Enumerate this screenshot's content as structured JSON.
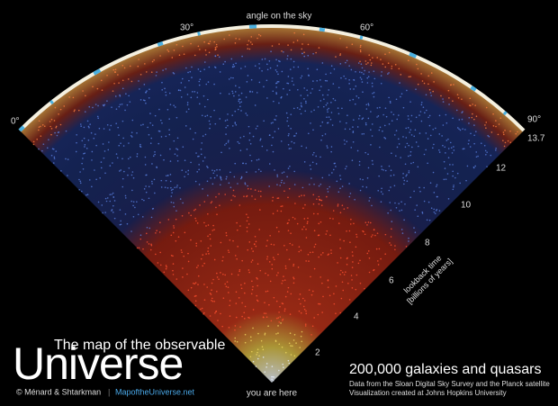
{
  "header": {
    "title_line": "The map of the observable",
    "title_big": "Universe",
    "credit": "© Ménard & Shtarkman",
    "link": "MapoftheUniverse.net"
  },
  "angle_axis": {
    "label": "angle on the sky",
    "ticks": [
      "0°",
      "30°",
      "60°",
      "90°"
    ]
  },
  "lookback_axis": {
    "label_lines": [
      "lookback time",
      "[billions of years]"
    ],
    "ticks": [
      "2",
      "4",
      "6",
      "8",
      "10",
      "12",
      "13.7"
    ]
  },
  "origin_label": "you are here",
  "caption": {
    "title": "200,000 galaxies and quasars",
    "lines": [
      "Data from the Sloan Digital Sky Survey and the Planck satellite",
      "Visualization created at Johns Hopkins University"
    ]
  }
}
